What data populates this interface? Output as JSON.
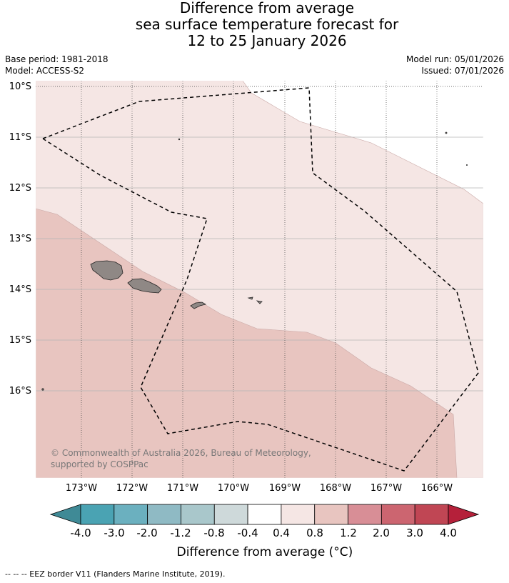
{
  "title_lines": [
    "Difference from average",
    "sea surface temperature forecast for",
    "12 to 25 January 2026"
  ],
  "base_period": "Base period: 1981-2018",
  "model": "Model: ACCESS-S2",
  "model_run": "Model run: 05/01/2026",
  "issued": "Issued: 07/01/2026",
  "lat_labels": [
    "10°S",
    "11°S",
    "12°S",
    "13°S",
    "14°S",
    "15°S",
    "16°S"
  ],
  "lon_labels": [
    "173°W",
    "172°W",
    "171°W",
    "170°W",
    "169°W",
    "168°W",
    "167°W",
    "166°W"
  ],
  "copyright": "© Commonwealth of Australia 2026, Bureau of Meteorology, supported by COSPPac",
  "colorbar": {
    "title": "Difference from average (°C)",
    "tick_labels": [
      "-4.0",
      "-3.0",
      "-2.0",
      "-1.2",
      "-0.8",
      "-0.4",
      "0.4",
      "0.8",
      "1.2",
      "2.0",
      "3.0",
      "4.0"
    ],
    "colors": [
      "#3f8a96",
      "#4aa3b3",
      "#6bb0bf",
      "#8fbac4",
      "#a9c7cb",
      "#ced9da",
      "#ffffff",
      "#f5e6e4",
      "#e8c5c0",
      "#d88e96",
      "#cc6570",
      "#c04654",
      "#b5203a"
    ]
  },
  "footer": "--  --  -- EEZ border V11 (Flanders Marine Institute, 2019)."
}
